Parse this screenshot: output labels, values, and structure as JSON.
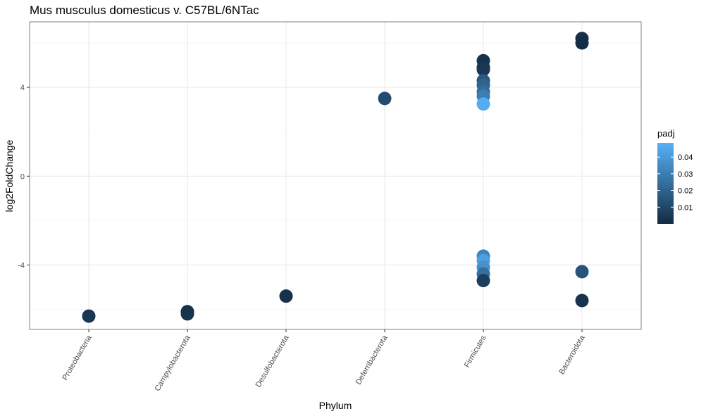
{
  "chart_data": {
    "type": "scatter",
    "title": "Mus musculus domesticus v. C57BL/6NTac",
    "xlabel": "Phylum",
    "ylabel": "log2FoldChange",
    "categories": [
      "Proteobacteria",
      "Campylobacterota",
      "Desulfobacterota",
      "Deferribacterota",
      "Firmicutes",
      "Bacteroidota"
    ],
    "yticks": [
      4,
      0,
      -4
    ],
    "ylim": [
      -6.9,
      6.95
    ],
    "grid": true,
    "legend": {
      "title": "padj",
      "position": "right",
      "ticks": [
        0.04,
        0.03,
        0.02,
        0.01
      ],
      "range": [
        0.0,
        0.0485
      ],
      "color_low": "#132B43",
      "color_high": "#56B1F7"
    },
    "points": [
      {
        "category": "Proteobacteria",
        "y": -6.3,
        "padj": 0.004
      },
      {
        "category": "Campylobacterota",
        "y": -6.1,
        "padj": 0.002
      },
      {
        "category": "Campylobacterota",
        "y": -6.2,
        "padj": 0.003
      },
      {
        "category": "Desulfobacterota",
        "y": -5.4,
        "padj": 0.002
      },
      {
        "category": "Deferribacterota",
        "y": 3.5,
        "padj": 0.012
      },
      {
        "category": "Firmicutes",
        "y": 5.2,
        "padj": 0.002
      },
      {
        "category": "Firmicutes",
        "y": 4.9,
        "padj": 0.003
      },
      {
        "category": "Firmicutes",
        "y": 4.8,
        "padj": 0.004
      },
      {
        "category": "Firmicutes",
        "y": 4.3,
        "padj": 0.016
      },
      {
        "category": "Firmicutes",
        "y": 4.1,
        "padj": 0.02
      },
      {
        "category": "Firmicutes",
        "y": 3.8,
        "padj": 0.024
      },
      {
        "category": "Firmicutes",
        "y": 3.6,
        "padj": 0.03
      },
      {
        "category": "Firmicutes",
        "y": 3.25,
        "padj": 0.047
      },
      {
        "category": "Firmicutes",
        "y": -3.6,
        "padj": 0.032
      },
      {
        "category": "Firmicutes",
        "y": -3.8,
        "padj": 0.042
      },
      {
        "category": "Firmicutes",
        "y": -4.1,
        "padj": 0.037
      },
      {
        "category": "Firmicutes",
        "y": -4.4,
        "padj": 0.025
      },
      {
        "category": "Firmicutes",
        "y": -4.7,
        "padj": 0.007
      },
      {
        "category": "Bacteroidota",
        "y": 6.2,
        "padj": 0.002
      },
      {
        "category": "Bacteroidota",
        "y": 6.0,
        "padj": 0.001
      },
      {
        "category": "Bacteroidota",
        "y": -4.3,
        "padj": 0.015
      },
      {
        "category": "Bacteroidota",
        "y": -5.6,
        "padj": 0.003
      }
    ]
  },
  "colors": {
    "panel_border": "#7f7f7f",
    "grid_major": "#ebebeb",
    "grid_minor": "#f5f5f5",
    "tick": "#333333"
  }
}
